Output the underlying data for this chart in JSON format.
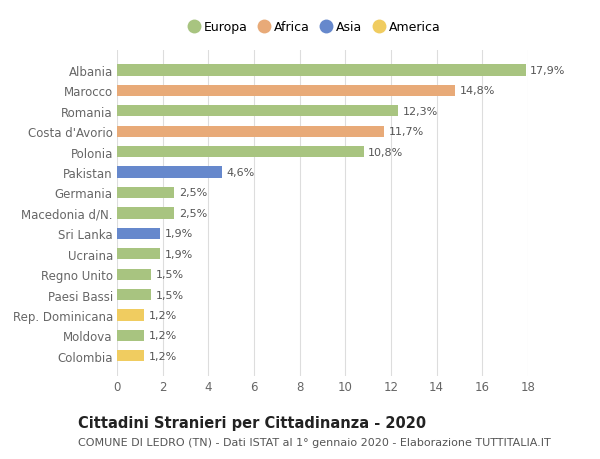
{
  "categories": [
    "Albania",
    "Marocco",
    "Romania",
    "Costa d'Avorio",
    "Polonia",
    "Pakistan",
    "Germania",
    "Macedonia d/N.",
    "Sri Lanka",
    "Ucraina",
    "Regno Unito",
    "Paesi Bassi",
    "Rep. Dominicana",
    "Moldova",
    "Colombia"
  ],
  "values": [
    17.9,
    14.8,
    12.3,
    11.7,
    10.8,
    4.6,
    2.5,
    2.5,
    1.9,
    1.9,
    1.5,
    1.5,
    1.2,
    1.2,
    1.2
  ],
  "labels": [
    "17,9%",
    "14,8%",
    "12,3%",
    "11,7%",
    "10,8%",
    "4,6%",
    "2,5%",
    "2,5%",
    "1,9%",
    "1,9%",
    "1,5%",
    "1,5%",
    "1,2%",
    "1,2%",
    "1,2%"
  ],
  "continents": [
    "Europa",
    "Africa",
    "Europa",
    "Africa",
    "Europa",
    "Asia",
    "Europa",
    "Europa",
    "Asia",
    "Europa",
    "Europa",
    "Europa",
    "America",
    "Europa",
    "America"
  ],
  "colors": {
    "Europa": "#a8c480",
    "Africa": "#e8aa78",
    "Asia": "#6688cc",
    "America": "#f0cc60"
  },
  "xlim": [
    0,
    18
  ],
  "xticks": [
    0,
    2,
    4,
    6,
    8,
    10,
    12,
    14,
    16,
    18
  ],
  "title": "Cittadini Stranieri per Cittadinanza - 2020",
  "subtitle": "COMUNE DI LEDRO (TN) - Dati ISTAT al 1° gennaio 2020 - Elaborazione TUTTITALIA.IT",
  "background_color": "#ffffff",
  "grid_color": "#dddddd",
  "bar_height": 0.55,
  "label_fontsize": 8,
  "ytick_fontsize": 8.5,
  "xtick_fontsize": 8.5,
  "title_fontsize": 10.5,
  "subtitle_fontsize": 8
}
